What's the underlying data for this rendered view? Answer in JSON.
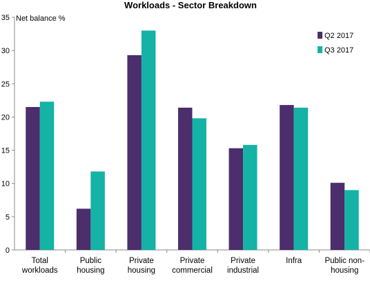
{
  "chart_data": {
    "type": "bar",
    "title": "Workloads - Sector Breakdown",
    "ylabel": "Net balance %",
    "xlabel": "",
    "ylim": [
      0,
      35
    ],
    "yticks": [
      0,
      5,
      10,
      15,
      20,
      25,
      30,
      35
    ],
    "grid": false,
    "legend_position": "top-right",
    "categories": [
      [
        "Total",
        "workloads"
      ],
      [
        "Public",
        "housing"
      ],
      [
        "Private",
        "housing"
      ],
      [
        "Private",
        "commercial"
      ],
      [
        "Private",
        "industrial"
      ],
      [
        "Infra"
      ],
      [
        "Public non-",
        "housing"
      ]
    ],
    "series": [
      {
        "name": "Q2 2017",
        "color": "#4b2e6b",
        "values": [
          21.5,
          6.2,
          29.3,
          21.4,
          15.3,
          21.8,
          10.1
        ]
      },
      {
        "name": "Q3 2017",
        "color": "#14b3a6",
        "values": [
          22.3,
          11.8,
          33.0,
          19.8,
          15.8,
          21.4,
          9.0
        ]
      }
    ]
  }
}
